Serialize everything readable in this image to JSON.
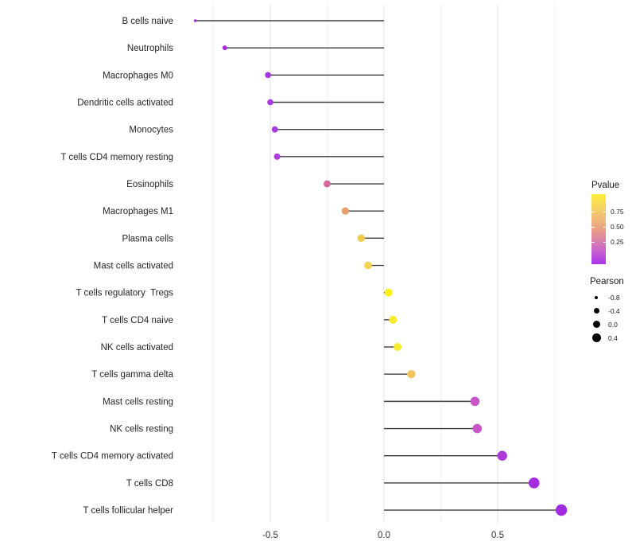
{
  "chart_data": {
    "type": "lollipop",
    "title": "",
    "xlabel": "",
    "ylabel": "",
    "orientation": "horizontal",
    "x_ticks": [
      -0.5,
      0.0,
      0.5
    ],
    "x_tick_labels": [
      "-0.5",
      "0.0",
      "0.5"
    ],
    "x_minor_ticks": [
      -0.75,
      -0.25,
      0.25,
      0.75
    ],
    "xlim": [
      -0.88,
      0.88
    ],
    "grid": "vertical-only",
    "legend_position": "right",
    "panel_background": "#FFFFFF",
    "grid_major_color": "#E3E3E3",
    "grid_minor_color": "#F1F1F1",
    "stick_color": "#3F3F3F",
    "axis_text_color": "#333333",
    "categories": [
      "B cells naive",
      "Neutrophils",
      "Macrophages M0",
      "Dendritic cells activated",
      "Monocytes",
      "T cells CD4 memory resting",
      "Eosinophils",
      "Macrophages M1",
      "Plasma cells",
      "Mast cells activated",
      "T cells regulatory  Tregs",
      "T cells CD4 naive",
      "NK cells activated",
      "T cells gamma delta",
      "Mast cells resting",
      "NK cells resting",
      "T cells CD4 memory activated",
      "T cells CD8",
      "T cells follicular helper"
    ],
    "points": [
      {
        "label": "B cells naive",
        "pearson": -0.83,
        "color": "#A232E0",
        "r": 1.8
      },
      {
        "label": "Neutrophils",
        "pearson": -0.7,
        "color": "#A52FDE",
        "r": 3.0
      },
      {
        "label": "Macrophages M0",
        "pearson": -0.51,
        "color": "#A637E0",
        "r": 3.8
      },
      {
        "label": "Dendritic cells activated",
        "pearson": -0.5,
        "color": "#A93CDE",
        "r": 3.8
      },
      {
        "label": "Monocytes",
        "pearson": -0.48,
        "color": "#A93CDE",
        "r": 4.0
      },
      {
        "label": "T cells CD4 memory resting",
        "pearson": -0.47,
        "color": "#AC3FDB",
        "r": 4.0
      },
      {
        "label": "Eosinophils",
        "pearson": -0.25,
        "color": "#D1679D",
        "r": 4.4
      },
      {
        "label": "Macrophages M1",
        "pearson": -0.17,
        "color": "#E99D6B",
        "r": 4.6
      },
      {
        "label": "Plasma cells",
        "pearson": -0.1,
        "color": "#EFCB4F",
        "r": 4.7
      },
      {
        "label": "Mast cells activated",
        "pearson": -0.07,
        "color": "#F2D34A",
        "r": 4.8
      },
      {
        "label": "T cells regulatory  Tregs",
        "pearson": 0.02,
        "color": "#FBF116",
        "r": 5.0
      },
      {
        "label": "T cells CD4 naive",
        "pearson": 0.04,
        "color": "#F8EC2B",
        "r": 5.0
      },
      {
        "label": "NK cells activated",
        "pearson": 0.06,
        "color": "#F6EA32",
        "r": 5.0
      },
      {
        "label": "T cells gamma delta",
        "pearson": 0.12,
        "color": "#EFC360",
        "r": 5.2
      },
      {
        "label": "Mast cells resting",
        "pearson": 0.4,
        "color": "#C657C5",
        "r": 5.8
      },
      {
        "label": "NK cells resting",
        "pearson": 0.41,
        "color": "#C657C5",
        "r": 5.8
      },
      {
        "label": "T cells CD4 memory activated",
        "pearson": 0.52,
        "color": "#AE3BD9",
        "r": 6.2
      },
      {
        "label": "T cells CD8",
        "pearson": 0.66,
        "color": "#A52BE0",
        "r": 6.8
      },
      {
        "label": "T cells follicular helper",
        "pearson": 0.78,
        "color": "#A32AE5",
        "r": 7.2
      }
    ],
    "legend": {
      "pvalue": {
        "title": "Pvalue",
        "tick_labels": [
          "0.75",
          "0.50",
          "0.25"
        ],
        "gradient_stops": [
          "#FBEE3B",
          "#F3C96A",
          "#E9A186",
          "#D06FC0",
          "#A834EC"
        ]
      },
      "pearson": {
        "title": "Pearson",
        "items": [
          {
            "label": "-0.8",
            "d": 4
          },
          {
            "label": "-0.4",
            "d": 7
          },
          {
            "label": "0.0",
            "d": 9
          },
          {
            "label": "0.4",
            "d": 11
          }
        ]
      }
    }
  }
}
